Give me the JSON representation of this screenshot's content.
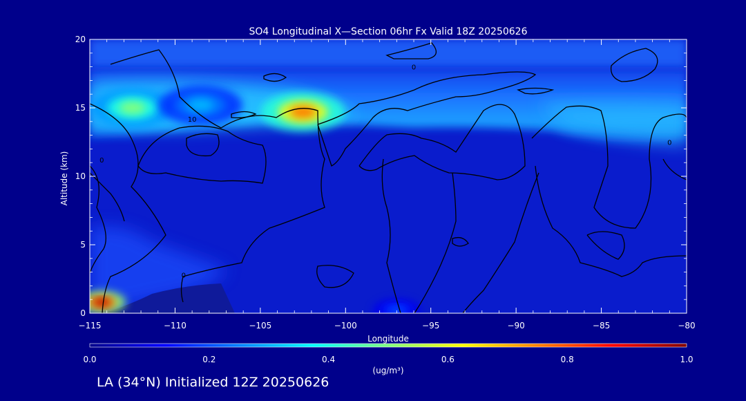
{
  "chart_data": {
    "type": "heatmap",
    "title": "SO4 Longitudinal X—Section 06hr  Fx Valid 18Z 20250626",
    "xlabel": "Longitude",
    "ylabel": "Altitude (km)",
    "xlim": [
      -115,
      -80
    ],
    "ylim": [
      0,
      20
    ],
    "x_ticks": [
      -115,
      -110,
      -105,
      -100,
      -95,
      -90,
      -85,
      -80
    ],
    "x_tick_labels": [
      "−115",
      "−110",
      "−105",
      "−100",
      "−95",
      "−90",
      "−85",
      "−80"
    ],
    "y_ticks": [
      0,
      5,
      10,
      15,
      20
    ],
    "y_tick_labels": [
      "0",
      "5",
      "10",
      "15",
      "20"
    ],
    "colorbar": {
      "min": 0.0,
      "max": 1.0,
      "ticks": [
        0.0,
        0.2,
        0.4,
        0.6,
        0.8,
        1.0
      ],
      "tick_labels": [
        "0.0",
        "0.2",
        "0.4",
        "0.6",
        "0.8",
        "1.0"
      ],
      "units_label": "(ug/m³)",
      "colormap": [
        "#00008b",
        "#0000ff",
        "#0080ff",
        "#00ffff",
        "#80ff80",
        "#ffff00",
        "#ff8000",
        "#ff0000",
        "#800000"
      ]
    },
    "concentration_features": [
      {
        "lon": -112.5,
        "alt": 15.0,
        "value": 0.5
      },
      {
        "lon": -108.5,
        "alt": 15.2,
        "value": 0.3
      },
      {
        "lon": -102.5,
        "alt": 14.7,
        "value": 0.75
      },
      {
        "lon": -114.3,
        "alt": 0.8,
        "value": 0.95
      },
      {
        "lon": -97.0,
        "alt": 0.2,
        "value": 0.2
      }
    ],
    "contour_labels": [
      {
        "text": "10",
        "lon": -109.0,
        "alt": 14.0
      },
      {
        "text": "0",
        "lon": -96.0,
        "alt": 17.8
      },
      {
        "text": "0",
        "lon": -81.0,
        "alt": 12.3
      },
      {
        "text": "0",
        "lon": -109.5,
        "alt": 2.6
      },
      {
        "text": "0",
        "lon": -114.3,
        "alt": 11.0
      }
    ]
  },
  "footer": {
    "caption": "LA (34°N) Initialized 12Z 20250626"
  }
}
